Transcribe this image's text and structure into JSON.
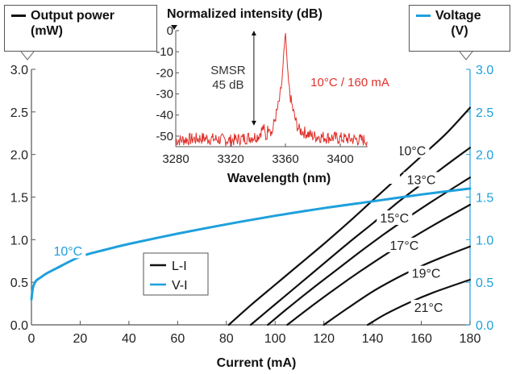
{
  "colors": {
    "li": "#111111",
    "vi": "#1ea0dc",
    "spectrum": "#e0302a"
  },
  "left_axis": {
    "title_line1": "Output power",
    "title_line2": "(mW)"
  },
  "right_axis": {
    "title_line1": "Voltage",
    "title_line2": "(V)"
  },
  "chart_data": [
    {
      "type": "line",
      "xlabel": "Current (mA)",
      "xlim": [
        0,
        180
      ],
      "ylim": [
        0,
        3.0
      ],
      "y2lim": [
        0,
        3.0
      ],
      "x_ticks": [
        "0",
        "20",
        "40",
        "60",
        "80",
        "100",
        "120",
        "140",
        "160",
        "180"
      ],
      "y_ticks": [
        "0.0",
        "0.5",
        "1.0",
        "1.5",
        "2.0",
        "2.5",
        "3.0"
      ],
      "y2_ticks": [
        "0.0",
        "0.5",
        "1.0",
        "1.5",
        "2.0",
        "2.5",
        "3.0"
      ],
      "legend": {
        "position": "center-left",
        "entries": [
          {
            "label": "L-I",
            "series": "li"
          },
          {
            "label": "V-I",
            "series": "vi"
          }
        ]
      },
      "series": [
        {
          "name": "10°C",
          "kind": "li",
          "x": [
            81,
            90,
            100,
            110,
            120,
            130,
            140,
            150,
            160,
            170,
            180
          ],
          "y": [
            0.0,
            0.23,
            0.47,
            0.71,
            0.95,
            1.2,
            1.46,
            1.72,
            1.98,
            2.24,
            2.55
          ]
        },
        {
          "name": "13°C",
          "kind": "li",
          "x": [
            90,
            100,
            110,
            120,
            130,
            140,
            150,
            160,
            170,
            180
          ],
          "y": [
            0.0,
            0.24,
            0.48,
            0.72,
            0.96,
            1.19,
            1.43,
            1.65,
            1.87,
            2.08
          ]
        },
        {
          "name": "15°C",
          "kind": "li",
          "x": [
            97,
            105,
            115,
            125,
            135,
            145,
            155,
            165,
            180
          ],
          "y": [
            0.0,
            0.19,
            0.42,
            0.64,
            0.86,
            1.07,
            1.27,
            1.46,
            1.73
          ]
        },
        {
          "name": "17°C",
          "kind": "li",
          "x": [
            105,
            115,
            125,
            135,
            145,
            155,
            165,
            180
          ],
          "y": [
            0.0,
            0.22,
            0.43,
            0.63,
            0.82,
            1.0,
            1.17,
            1.41
          ]
        },
        {
          "name": "19°C",
          "kind": "li",
          "x": [
            120,
            130,
            140,
            150,
            160,
            170,
            180
          ],
          "y": [
            0.0,
            0.2,
            0.39,
            0.55,
            0.69,
            0.81,
            0.92
          ]
        },
        {
          "name": "21°C",
          "kind": "li",
          "x": [
            138,
            145,
            155,
            165,
            180
          ],
          "y": [
            0.0,
            0.12,
            0.26,
            0.38,
            0.53
          ]
        },
        {
          "name": "10°C",
          "kind": "vi",
          "x": [
            0,
            0.5,
            1,
            2,
            4,
            6,
            10,
            20,
            30,
            40,
            60,
            80,
            100,
            120,
            140,
            160,
            180
          ],
          "y": [
            0.3,
            0.42,
            0.47,
            0.52,
            0.56,
            0.6,
            0.66,
            0.8,
            0.88,
            0.95,
            1.07,
            1.18,
            1.28,
            1.37,
            1.45,
            1.53,
            1.6
          ]
        }
      ],
      "curve_labels": [
        {
          "text": "10°C",
          "x": 156,
          "y": 2.02
        },
        {
          "text": "13°C",
          "x": 160,
          "y": 1.68
        },
        {
          "text": "15°C",
          "x": 149,
          "y": 1.23
        },
        {
          "text": "17°C",
          "x": 153,
          "y": 0.91
        },
        {
          "text": "19°C",
          "x": 162,
          "y": 0.58
        },
        {
          "text": "21°C",
          "x": 163,
          "y": 0.18
        },
        {
          "text": "10°C",
          "kind": "vi",
          "x": 15,
          "y": 0.84
        }
      ]
    },
    {
      "type": "line",
      "title": "Normalized intensity (dB)",
      "xlabel": "Wavelength (nm)",
      "xlim": [
        3280,
        3420
      ],
      "ylim": [
        -55,
        0
      ],
      "x_ticks": [
        "3280",
        "3320",
        "3360",
        "3400"
      ],
      "y_ticks": [
        "0",
        "-10",
        "-20",
        "-30",
        "-40",
        "-50"
      ],
      "series": [
        {
          "name": "10°C / 160 mA",
          "x": [
            3280,
            3300,
            3320,
            3330,
            3340,
            3344,
            3346,
            3348,
            3350,
            3352,
            3354,
            3356,
            3358,
            3359,
            3360,
            3361,
            3362,
            3364,
            3366,
            3368,
            3370,
            3380,
            3400,
            3420
          ],
          "y": [
            -52,
            -51,
            -52,
            -51,
            -50,
            -46,
            -51,
            -44,
            -49,
            -43,
            -38,
            -32,
            -21,
            -10,
            0,
            -12,
            -24,
            -33,
            -39,
            -44,
            -47,
            -50,
            -51,
            -52
          ]
        }
      ],
      "annotations": [
        {
          "text": "SMSR",
          "line": 1
        },
        {
          "text": "45 dB",
          "line": 2
        },
        {
          "text": "10°C / 160 mA"
        }
      ],
      "smsr_db": 45
    }
  ]
}
